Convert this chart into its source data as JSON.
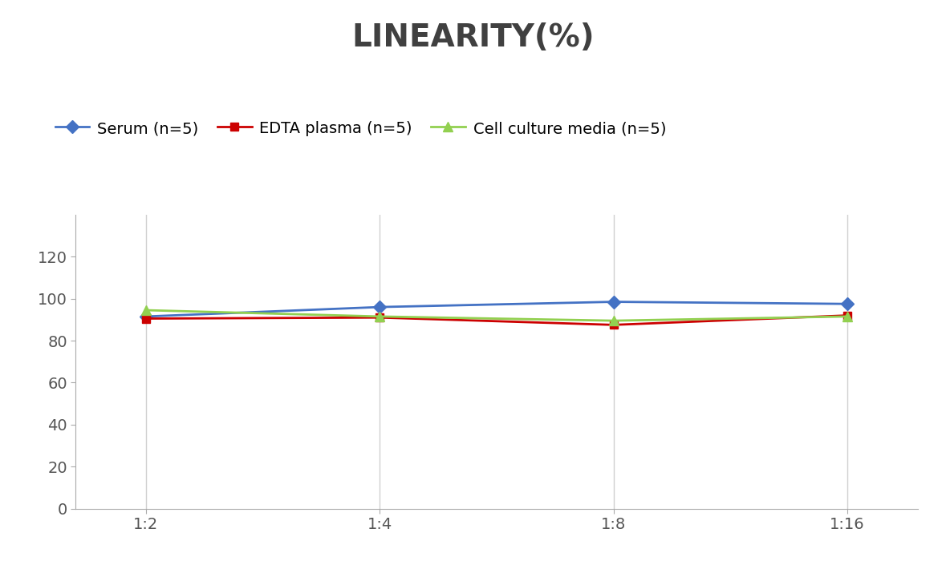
{
  "title": "LINEARITY(%)",
  "title_fontsize": 28,
  "title_fontweight": "bold",
  "x_labels": [
    "1:2",
    "1:4",
    "1:8",
    "1:16"
  ],
  "series": [
    {
      "label": "Serum (n=5)",
      "values": [
        91.5,
        96.0,
        98.5,
        97.5
      ],
      "color": "#4472C4",
      "marker": "D",
      "markersize": 8,
      "linewidth": 2.0
    },
    {
      "label": "EDTA plasma (n=5)",
      "values": [
        90.5,
        91.0,
        87.5,
        92.0
      ],
      "color": "#CC0000",
      "marker": "s",
      "markersize": 7,
      "linewidth": 2.0
    },
    {
      "label": "Cell culture media (n=5)",
      "values": [
        94.5,
        91.5,
        89.5,
        91.5
      ],
      "color": "#92D050",
      "marker": "^",
      "markersize": 8,
      "linewidth": 2.0
    }
  ],
  "ylim": [
    0,
    140
  ],
  "yticks": [
    0,
    20,
    40,
    60,
    80,
    100,
    120
  ],
  "background_color": "#ffffff",
  "grid_color": "#d0d0d0",
  "legend_fontsize": 14,
  "tick_fontsize": 14,
  "title_color": "#404040"
}
